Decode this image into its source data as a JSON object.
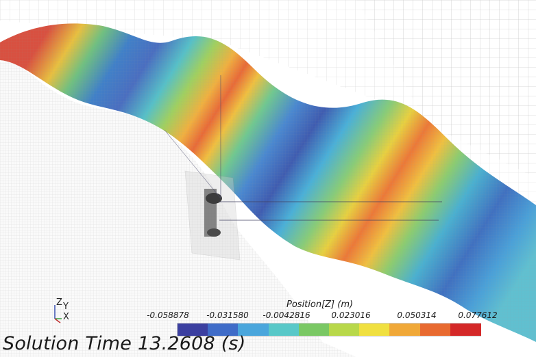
{
  "legend": {
    "title": "Position[Z] (m)",
    "ticks": [
      "-0.058878",
      "-0.031580",
      "-0.0042816",
      "0.023016",
      "0.050314",
      "0.077612"
    ],
    "colors": [
      "#3b3fa0",
      "#3f6cc8",
      "#4aa6dc",
      "#58c8c8",
      "#7ac864",
      "#b8d84a",
      "#f0e040",
      "#f0a838",
      "#e86a30",
      "#d42828"
    ]
  },
  "axes_triad": {
    "z_label": "Z",
    "y_label": "Y",
    "x_label": "X"
  },
  "solution_time": {
    "label": "Solution Time 13.2608 (s)"
  }
}
